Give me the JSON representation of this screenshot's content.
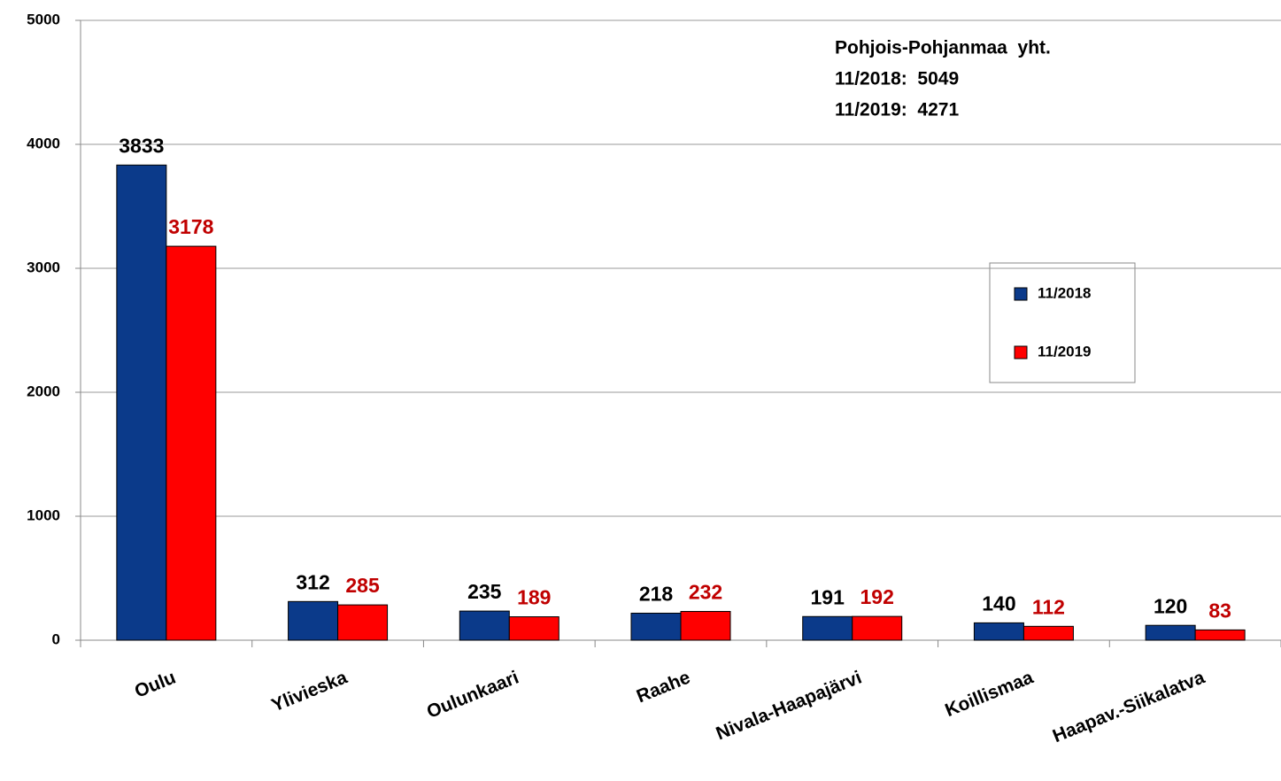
{
  "chart_data": {
    "type": "bar",
    "categories": [
      "Oulu",
      "Ylivieska",
      "Oulunkaari",
      "Raahe",
      "Nivala-Haapajärvi",
      "Koillismaa",
      "Haapav.-Siikalatva"
    ],
    "series": [
      {
        "name": "11/2018",
        "color": "#0b3a8a",
        "label_color": "#000000",
        "values": [
          3833,
          312,
          235,
          218,
          191,
          140,
          120
        ]
      },
      {
        "name": "11/2019",
        "color": "#ff0000",
        "label_color": "#c00000",
        "values": [
          3178,
          285,
          189,
          232,
          192,
          112,
          83
        ]
      }
    ],
    "ylim": [
      0,
      5000
    ],
    "yticks": [
      0,
      1000,
      2000,
      3000,
      4000,
      5000
    ],
    "grid": true,
    "annotations": [
      "Pohjois-Pohjanmaa  yht.",
      "11/2018:  5049",
      "11/2019:  4271"
    ]
  }
}
